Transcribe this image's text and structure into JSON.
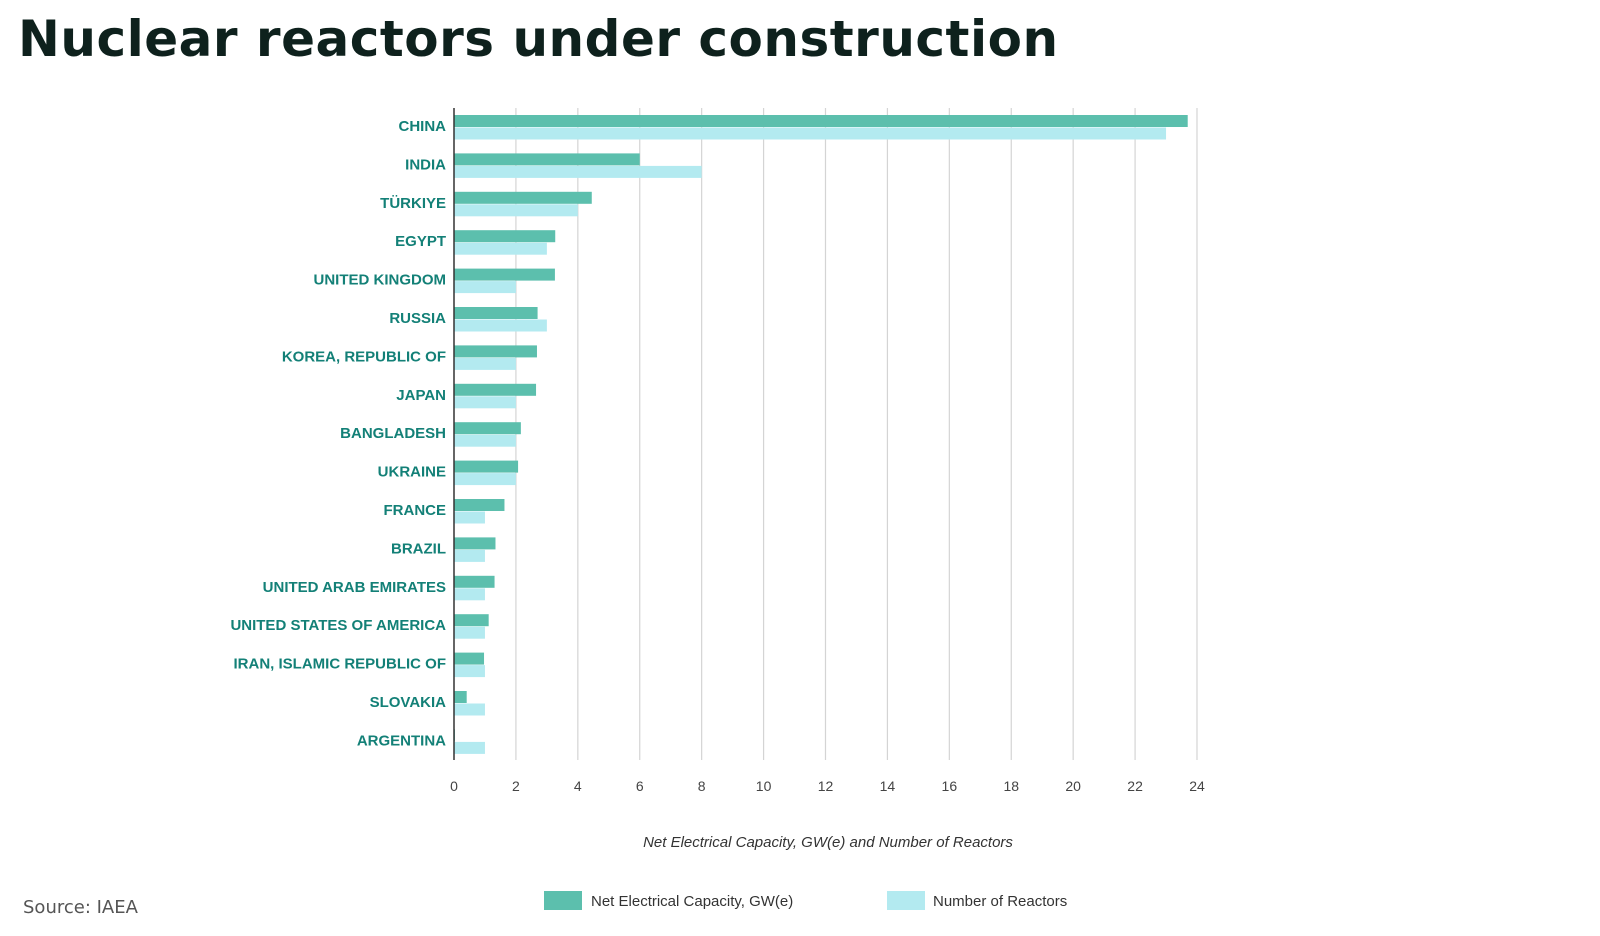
{
  "title": "Nuclear reactors under construction",
  "source": "Source: IAEA",
  "colors": {
    "capacity": "#5cbfad",
    "reactors": "#b3eaf0",
    "category_label": "#138077",
    "grid": "#d4d4d4",
    "axis": "#333333",
    "tick_label": "#444444",
    "title": "#0e211d"
  },
  "chart_data": {
    "type": "bar",
    "orientation": "horizontal",
    "categories": [
      "CHINA",
      "INDIA",
      "TÜRKIYE",
      "EGYPT",
      "UNITED KINGDOM",
      "RUSSIA",
      "KOREA, REPUBLIC OF",
      "JAPAN",
      "BANGLADESH",
      "UKRAINE",
      "FRANCE",
      "BRAZIL",
      "UNITED ARAB EMIRATES",
      "UNITED STATES OF AMERICA",
      "IRAN, ISLAMIC REPUBLIC OF",
      "SLOVAKIA",
      "ARGENTINA"
    ],
    "series": [
      {
        "name": "Net Electrical Capacity, GW(e)",
        "values": [
          23.7,
          6.0,
          4.45,
          3.27,
          3.26,
          2.7,
          2.68,
          2.65,
          2.16,
          2.07,
          1.63,
          1.34,
          1.31,
          1.12,
          0.97,
          0.41,
          0.03
        ]
      },
      {
        "name": "Number of Reactors",
        "values": [
          23,
          8,
          4,
          3,
          2,
          3,
          2,
          2,
          2,
          2,
          1,
          1,
          1,
          1,
          1,
          1,
          1
        ]
      }
    ],
    "xlabel": "Net Electrical Capacity, GW(e) and Number of Reactors",
    "ylabel": "",
    "xlim": [
      0,
      24
    ],
    "xticks": [
      0,
      2,
      4,
      6,
      8,
      10,
      12,
      14,
      16,
      18,
      20,
      22,
      24
    ],
    "grid": "vertical",
    "legend": "bottom"
  }
}
